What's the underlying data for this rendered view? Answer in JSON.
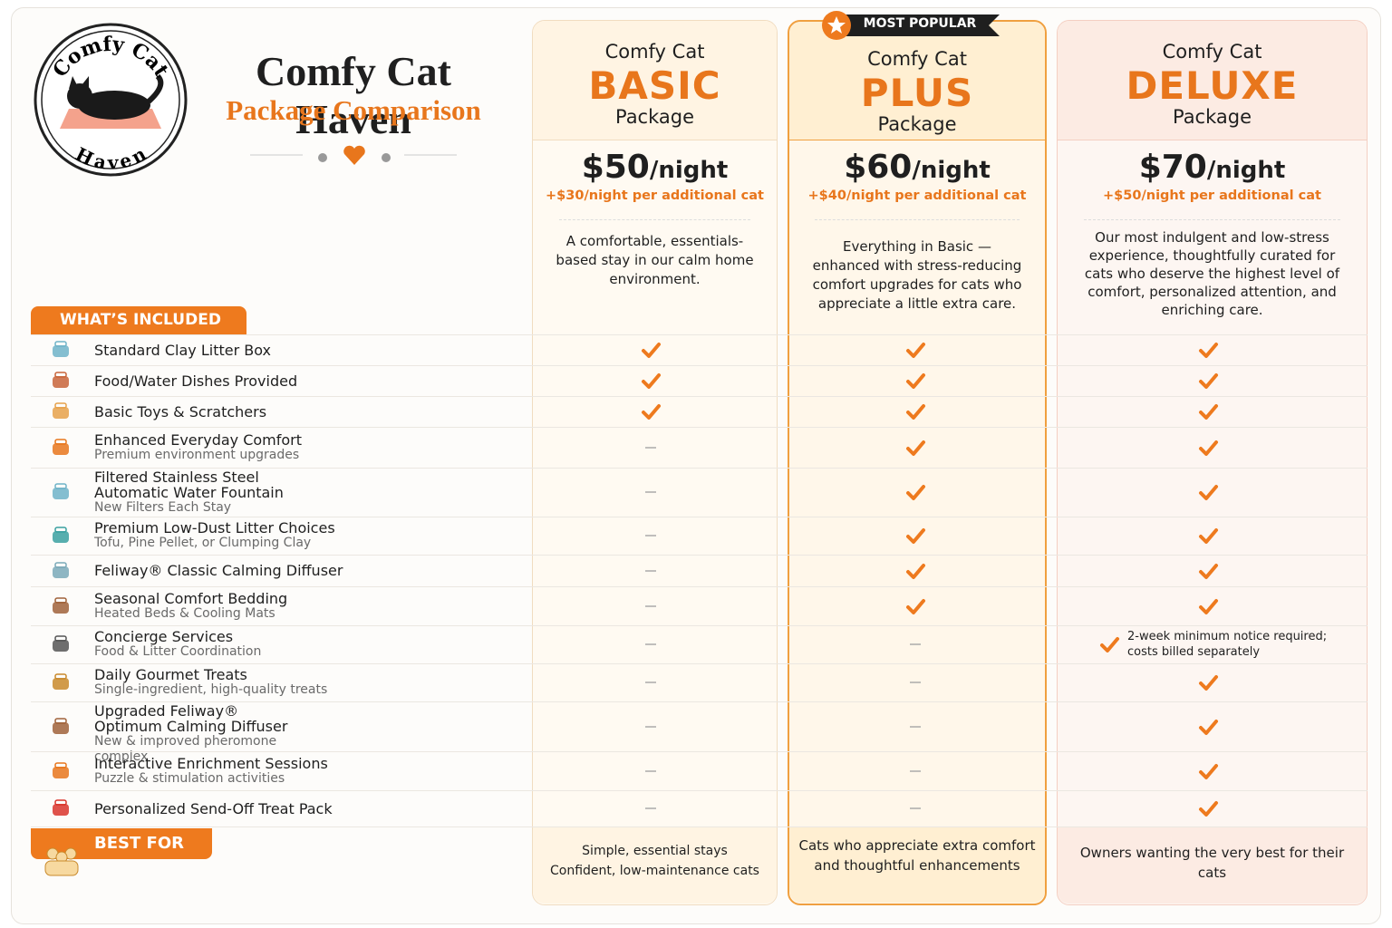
{
  "header": {
    "logo_top": "Comfy Cat",
    "logo_bottom": "Haven",
    "title": "Comfy Cat Haven",
    "subtitle": "Package Comparison"
  },
  "badge": "MOST POPULAR",
  "sections": {
    "included": "WHAT’S INCLUDED",
    "best_for": "BEST FOR"
  },
  "packages": [
    {
      "prefix": "Comfy Cat",
      "name": "BASIC",
      "suffix": "Package",
      "price": "$50",
      "unit": "/night",
      "extra": "+$30/night per additional cat",
      "description": "A comfortable, essentials-based stay in our calm home environment.",
      "best_for": [
        "Simple, essential stays",
        "Confident, low-maintenance cats"
      ]
    },
    {
      "prefix": "Comfy Cat",
      "name": "PLUS",
      "suffix": "Package",
      "price": "$60",
      "unit": "/night",
      "extra": "+$40/night per additional cat",
      "description": "Everything in Basic — enhanced with stress-reducing comfort upgrades for cats who appreciate a little extra care.",
      "best_for": [
        "Cats who appreciate extra comfort and thoughtful enhancements"
      ]
    },
    {
      "prefix": "Comfy Cat",
      "name": "DELUXE",
      "suffix": "Package",
      "price": "$70",
      "unit": "/night",
      "extra": "+$50/night per additional cat",
      "description": "Our most indulgent and low-stress experience, thoughtfully curated for cats who deserve the highest level of comfort, personalized attention, and enriching care.",
      "best_for": [
        "Owners wanting the very best for their cats"
      ]
    }
  ],
  "features": [
    {
      "label": "Standard Clay Litter Box",
      "included": [
        true,
        true,
        true
      ]
    },
    {
      "label": "Food/Water Dishes Provided",
      "included": [
        true,
        true,
        true
      ]
    },
    {
      "label": "Basic Toys & Scratchers",
      "included": [
        true,
        true,
        true
      ]
    },
    {
      "label": "Enhanced Everyday Comfort",
      "sublabel": "Premium environment upgrades",
      "included": [
        false,
        true,
        true
      ]
    },
    {
      "label": "Filtered Stainless Steel Automatic Water Fountain",
      "sublabel": "New Filters Each Stay",
      "included": [
        false,
        true,
        true
      ]
    },
    {
      "label": "Premium Low-Dust Litter Choices",
      "sublabel": "Tofu, Pine Pellet, or Clumping Clay",
      "included": [
        false,
        true,
        true
      ]
    },
    {
      "label": "Feliway® Classic Calming Diffuser",
      "included": [
        false,
        true,
        true
      ]
    },
    {
      "label": "Seasonal Comfort Bedding",
      "sublabel": "Heated Beds & Cooling Mats",
      "included": [
        false,
        true,
        true
      ]
    },
    {
      "label": "Concierge Services",
      "sublabel": "Food & Litter Coordination",
      "included": [
        false,
        false,
        true
      ],
      "note": "2-week minimum notice required; costs billed separately"
    },
    {
      "label": "Daily Gourmet Treats",
      "sublabel": "Single-ingredient, high-quality treats",
      "included": [
        false,
        false,
        true
      ]
    },
    {
      "label": "Upgraded Feliway® Optimum Calming Diffuser",
      "sublabel": "New & improved pheromone complex",
      "included": [
        false,
        false,
        true
      ]
    },
    {
      "label": "Interactive Enrichment Sessions",
      "sublabel": "Puzzle & stimulation activities",
      "included": [
        false,
        false,
        true
      ]
    },
    {
      "label": "Personalized Send-Off Treat Pack",
      "included": [
        false,
        false,
        true
      ]
    }
  ]
}
